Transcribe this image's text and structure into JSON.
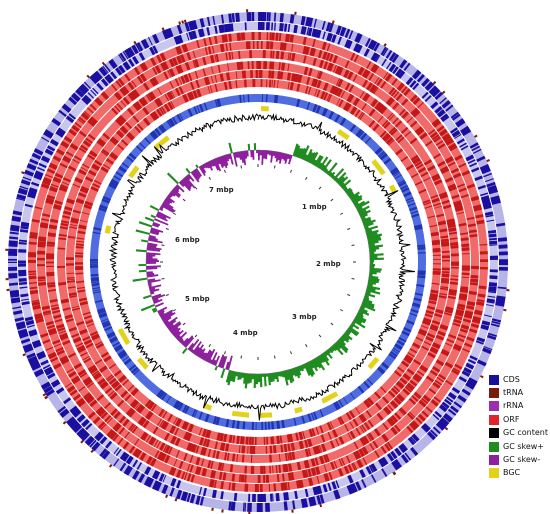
{
  "chart_data": {
    "type": "circular genome map",
    "scale_labels": [
      "1 mbp",
      "2 mbp",
      "3 mbp",
      "4 mbp",
      "5 mbp",
      "6 mbp",
      "7 mbp"
    ],
    "legend": [
      {
        "label": "CDS",
        "color": "#1a0f9e"
      },
      {
        "label": "tRNA",
        "color": "#7a1b0c"
      },
      {
        "label": "rRNA",
        "color": "#9a2fb0"
      },
      {
        "label": "ORF",
        "color": "#e0242e"
      },
      {
        "label": "GC content",
        "color": "#000000"
      },
      {
        "label": "GC skew+",
        "color": "#1e8c1e"
      },
      {
        "label": "GC skew-",
        "color": "#8e1f9e"
      },
      {
        "label": "BGC",
        "color": "#e3d21a"
      }
    ]
  }
}
